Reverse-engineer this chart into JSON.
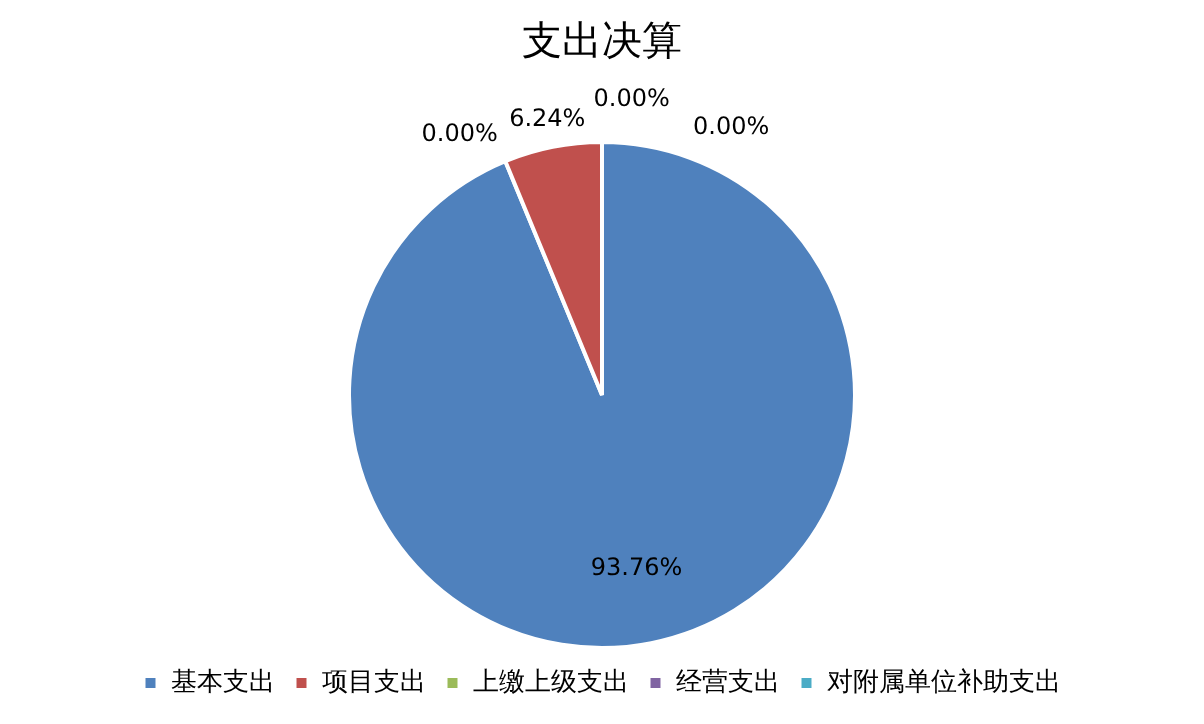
{
  "chart_data": {
    "type": "pie",
    "title": "支出决算",
    "categories": [
      "基本支出",
      "项目支出",
      "上缴上级支出",
      "经营支出",
      "对附属单位补助支出"
    ],
    "values": [
      93.76,
      6.24,
      0,
      0,
      0
    ],
    "colors": [
      "#4f81bd",
      "#c0504d",
      "#9bbb59",
      "#8064a2",
      "#4bacc6"
    ],
    "value_labels": [
      "93.76%",
      "6.24%",
      "0.00%",
      "0.00%",
      "0.00%"
    ],
    "legend": "bottom"
  }
}
